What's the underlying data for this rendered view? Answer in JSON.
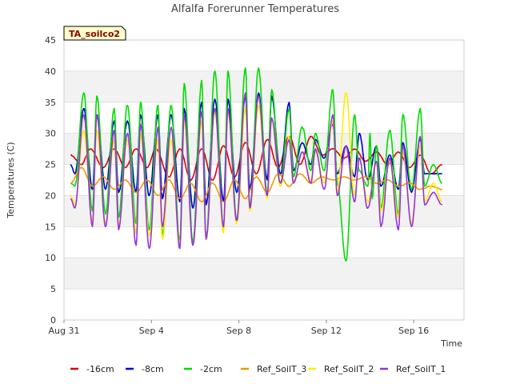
{
  "chart_data": {
    "type": "line",
    "title": "Alfalfa Forerunner Temperatures",
    "xlabel": "Time",
    "ylabel": "Temperatures (C)",
    "site_label": "TA_soilco2",
    "ylim": [
      0,
      45
    ],
    "y_ticks": [
      0,
      5,
      10,
      15,
      20,
      25,
      30,
      35,
      40,
      45
    ],
    "x_range_days": [
      0,
      18.3
    ],
    "x_ticks": [
      {
        "day": 0,
        "label": "Aug 31"
      },
      {
        "day": 4,
        "label": "Sep 4"
      },
      {
        "day": 8,
        "label": "Sep 8"
      },
      {
        "day": 12,
        "label": "Sep 12"
      },
      {
        "day": 16,
        "label": "Sep 16"
      }
    ],
    "grid": "horizontal banded",
    "legend_position": "bottom",
    "series": [
      {
        "name": "-16cm",
        "color": "#dd0000",
        "x": [
          0.3,
          0.8,
          1.2,
          1.8,
          2.3,
          2.8,
          3.3,
          3.8,
          4.2,
          4.8,
          5.3,
          5.8,
          6.3,
          6.8,
          7.3,
          7.8,
          8.3,
          8.8,
          9.3,
          9.8,
          10.3,
          10.8,
          11.3,
          11.8,
          12.3,
          12.8,
          13.3,
          13.8,
          14.3,
          14.8,
          15.3,
          15.8,
          16.3,
          16.8,
          17.3
        ],
        "y": [
          26.5,
          25.0,
          27.5,
          24.5,
          27.5,
          24.5,
          27.5,
          24.5,
          27.5,
          23.0,
          27.5,
          22.5,
          27.5,
          22.5,
          28.0,
          23.0,
          28.5,
          23.5,
          29.0,
          24.5,
          29.5,
          25.0,
          29.5,
          26.5,
          27.5,
          26.0,
          27.5,
          25.5,
          27.0,
          25.0,
          27.0,
          24.5,
          26.5,
          23.5,
          25.0
        ]
      },
      {
        "name": "-8cm",
        "color": "#0000cc",
        "x": [
          0.3,
          0.5,
          0.9,
          1.3,
          1.5,
          1.9,
          2.3,
          2.5,
          2.9,
          3.3,
          3.5,
          3.9,
          4.3,
          4.5,
          4.9,
          5.3,
          5.5,
          5.9,
          6.3,
          6.5,
          6.9,
          7.3,
          7.5,
          7.9,
          8.3,
          8.5,
          8.9,
          9.3,
          9.5,
          9.9,
          10.3,
          10.5,
          10.9,
          11.3,
          11.5,
          11.9,
          12.3,
          12.5,
          12.9,
          13.3,
          13.5,
          13.9,
          14.3,
          14.5,
          14.9,
          15.3,
          15.5,
          15.9,
          16.3,
          16.5,
          16.9,
          17.3
        ],
        "y": [
          25.0,
          23.5,
          34.0,
          21.0,
          33.0,
          21.0,
          32.0,
          20.5,
          32.0,
          20.5,
          33.0,
          20.0,
          33.0,
          19.5,
          33.0,
          19.0,
          34.0,
          18.0,
          35.0,
          18.5,
          35.5,
          19.0,
          35.5,
          20.5,
          36.0,
          21.0,
          36.5,
          22.5,
          36.0,
          23.5,
          35.0,
          24.0,
          28.5,
          25.0,
          29.0,
          26.0,
          31.5,
          23.5,
          28.0,
          23.0,
          30.0,
          22.5,
          28.0,
          21.5,
          26.5,
          21.0,
          28.5,
          20.5,
          29.0,
          23.5,
          23.5,
          23.5
        ]
      },
      {
        "name": "-2cm",
        "color": "#00dd00",
        "x": [
          0.3,
          0.5,
          0.9,
          1.3,
          1.5,
          1.9,
          2.3,
          2.5,
          2.9,
          3.3,
          3.5,
          3.9,
          4.3,
          4.5,
          4.9,
          5.3,
          5.5,
          5.9,
          6.3,
          6.5,
          6.9,
          7.3,
          7.5,
          7.9,
          8.3,
          8.5,
          8.9,
          9.3,
          9.5,
          9.9,
          10.3,
          10.5,
          10.9,
          11.3,
          11.5,
          11.9,
          12.3,
          12.5,
          12.9,
          13.3,
          13.5,
          13.9,
          14.0,
          14.1,
          14.3,
          14.5,
          14.9,
          15.3,
          15.5,
          15.9,
          16.3,
          16.5,
          16.9,
          17.3
        ],
        "y": [
          22.0,
          21.5,
          36.5,
          17.5,
          36.0,
          17.0,
          34.0,
          16.5,
          34.5,
          15.5,
          35.0,
          14.5,
          34.5,
          13.5,
          34.5,
          12.5,
          38.0,
          12.5,
          38.5,
          13.0,
          40.0,
          14.5,
          40.0,
          16.0,
          40.5,
          18.0,
          40.5,
          20.0,
          37.0,
          22.0,
          34.0,
          23.0,
          31.0,
          24.0,
          30.0,
          24.0,
          37.0,
          22.0,
          9.5,
          33.0,
          24.0,
          21.5,
          30.0,
          19.5,
          28.0,
          18.0,
          30.5,
          17.0,
          33.0,
          21.0,
          34.0,
          21.5,
          25.0,
          22.0
        ]
      },
      {
        "name": "Ref_SoilT_3",
        "color": "#ee9900",
        "x": [
          0.3,
          0.8,
          1.3,
          1.8,
          2.3,
          2.8,
          3.3,
          3.8,
          4.3,
          4.8,
          5.3,
          5.8,
          6.3,
          6.8,
          7.3,
          7.8,
          8.3,
          8.8,
          9.3,
          9.8,
          10.3,
          10.8,
          11.3,
          11.8,
          12.3,
          12.8,
          13.3,
          13.8,
          14.3,
          14.8,
          15.3,
          15.8,
          16.3,
          16.8,
          17.3
        ],
        "y": [
          22.0,
          24.5,
          21.5,
          23.0,
          21.0,
          22.5,
          20.5,
          22.5,
          20.0,
          22.5,
          19.5,
          22.0,
          19.0,
          22.0,
          19.0,
          22.5,
          19.5,
          23.0,
          20.5,
          23.5,
          21.5,
          23.5,
          22.0,
          23.0,
          22.5,
          23.0,
          22.5,
          23.0,
          22.0,
          22.5,
          21.5,
          22.0,
          21.0,
          21.5,
          21.0
        ]
      },
      {
        "name": "Ref_SoilT_2",
        "color": "#ffee00",
        "x": [
          0.3,
          0.5,
          0.9,
          1.3,
          1.5,
          1.9,
          2.3,
          2.5,
          2.9,
          3.3,
          3.5,
          3.9,
          4.3,
          4.5,
          4.9,
          5.3,
          5.5,
          5.9,
          6.3,
          6.5,
          6.9,
          7.3,
          7.5,
          7.9,
          8.3,
          8.5,
          8.9,
          9.3,
          9.5,
          9.9,
          10.3,
          10.5,
          10.9,
          11.3,
          11.5,
          11.9,
          12.3,
          12.5,
          12.9,
          13.3,
          13.5,
          13.9,
          14.3,
          14.5,
          14.9,
          15.3,
          15.5,
          15.9,
          16.3,
          16.5,
          16.9,
          17.3
        ],
        "y": [
          20.0,
          18.5,
          30.5,
          16.0,
          30.5,
          15.5,
          29.0,
          15.0,
          29.0,
          14.0,
          30.0,
          13.5,
          29.0,
          13.0,
          29.0,
          12.0,
          32.0,
          12.0,
          32.0,
          13.0,
          33.5,
          14.0,
          33.5,
          15.5,
          34.0,
          17.5,
          34.5,
          19.5,
          32.0,
          21.5,
          29.5,
          22.0,
          27.0,
          22.5,
          27.0,
          22.0,
          32.0,
          20.5,
          36.5,
          20.0,
          26.0,
          19.0,
          25.0,
          17.5,
          25.5,
          16.5,
          27.0,
          15.5,
          28.0,
          19.0,
          22.0,
          19.0
        ]
      },
      {
        "name": "Ref_SoilT_1",
        "color": "#9933dd",
        "x": [
          0.3,
          0.5,
          0.9,
          1.3,
          1.5,
          1.9,
          2.3,
          2.5,
          2.9,
          3.3,
          3.5,
          3.9,
          4.3,
          4.5,
          4.9,
          5.3,
          5.5,
          5.9,
          6.3,
          6.5,
          6.9,
          7.3,
          7.5,
          7.9,
          8.3,
          8.5,
          8.9,
          9.3,
          9.5,
          9.9,
          10.3,
          10.5,
          10.9,
          11.3,
          11.5,
          11.9,
          12.3,
          12.5,
          12.9,
          13.3,
          13.5,
          13.9,
          14.3,
          14.5,
          14.9,
          15.3,
          15.5,
          15.9,
          16.3,
          16.5,
          16.9,
          17.3
        ],
        "y": [
          19.5,
          18.0,
          33.0,
          15.0,
          33.0,
          15.0,
          30.5,
          14.5,
          30.0,
          12.0,
          31.5,
          11.5,
          31.0,
          15.0,
          31.0,
          11.5,
          33.0,
          12.0,
          33.5,
          13.0,
          34.0,
          15.0,
          34.0,
          16.0,
          36.5,
          18.0,
          36.0,
          20.0,
          32.5,
          22.0,
          29.0,
          22.0,
          27.0,
          22.0,
          27.5,
          21.0,
          33.0,
          20.0,
          28.0,
          19.0,
          26.0,
          18.0,
          25.5,
          15.0,
          26.0,
          14.5,
          28.0,
          15.0,
          29.5,
          18.5,
          20.5,
          18.5
        ]
      }
    ]
  }
}
